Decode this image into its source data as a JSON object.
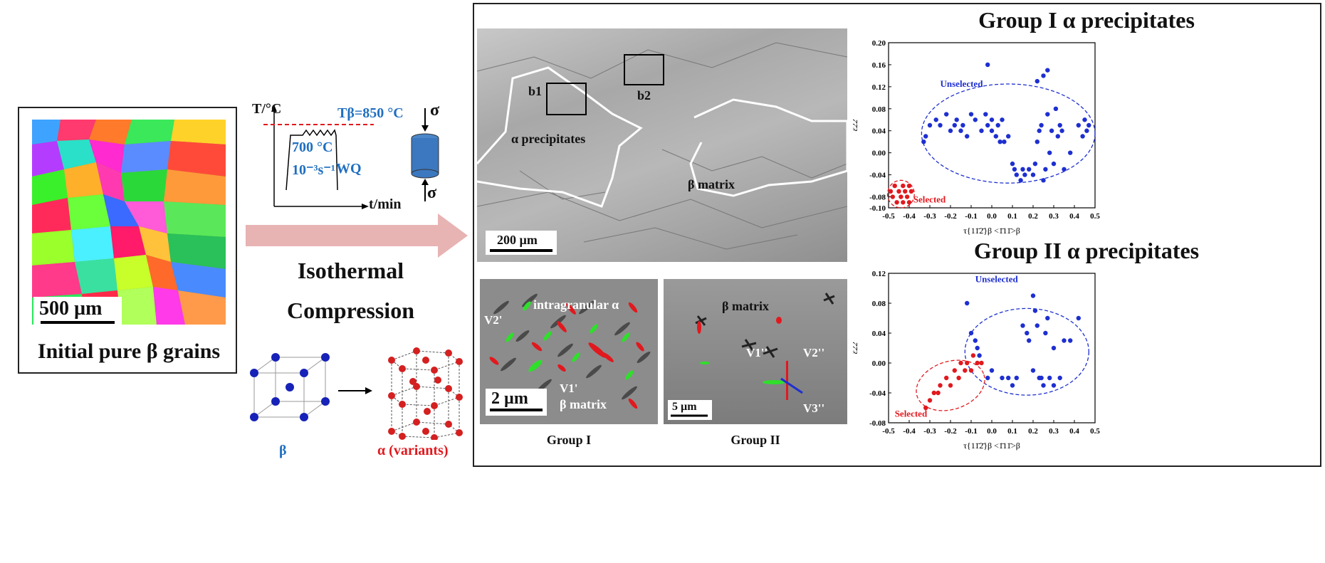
{
  "left_panel": {
    "scale_bar": "500 µm",
    "caption": "Initial pure β grains"
  },
  "process": {
    "temp_axis": "T/°C",
    "time_axis": "t/min",
    "beta_transus": "Tβ=850 °C",
    "hold_temp": "700 °C",
    "strain_rate": "10⁻³s⁻¹",
    "quench": "WQ",
    "stress_top": "σ",
    "stress_bottom": "σ",
    "title_line1": "Isothermal",
    "title_line2": "Compression",
    "beta_label": "β",
    "alpha_label": "α (variants)"
  },
  "micrograph_main": {
    "label_b1": "b1",
    "label_b2": "b2",
    "alpha_label": "α precipitates",
    "beta_label": "β matrix",
    "scale_bar": "200 µm"
  },
  "micrograph_group1": {
    "intragranular": "intragranular α",
    "v2": "V2'",
    "v1": "V1'",
    "beta": "β matrix",
    "scale_bar": "2 µm",
    "caption": "Group I"
  },
  "micrograph_group2": {
    "beta": "β matrix",
    "v1": "V1''",
    "v2": "V2''",
    "v3": "V3''",
    "scale_bar": "5 µm",
    "caption": "Group II"
  },
  "colors": {
    "selected": "#e1191e",
    "unselected": "#1e2fd0",
    "label_blue": "#1f6fc0",
    "arrow": "#e7b3b3"
  },
  "chart_data": [
    {
      "type": "scatter",
      "title": "Group I α precipitates",
      "xlabel": "τ{11̄2̄}β <1̄11̄>β",
      "ylabel": "ε22",
      "xlim": [
        -0.5,
        0.5
      ],
      "ylim": [
        -0.1,
        0.2
      ],
      "xticks": [
        "-0.5",
        "-0.4",
        "-0.3",
        "-0.2",
        "-0.1",
        "0.0",
        "0.1",
        "0.2",
        "0.3",
        "0.4",
        "0.5"
      ],
      "yticks": [
        "-0.10",
        "-0.08",
        "-0.04",
        "0.00",
        "0.04",
        "0.08",
        "0.12",
        "0.16",
        "0.20"
      ],
      "annotations": [
        "Unselected",
        "Selected"
      ],
      "series": [
        {
          "color": "#1e2fd0",
          "points": [
            [
              -0.33,
              0.02
            ],
            [
              -0.32,
              0.03
            ],
            [
              -0.3,
              0.05
            ],
            [
              -0.27,
              0.06
            ],
            [
              -0.25,
              0.05
            ],
            [
              -0.22,
              0.07
            ],
            [
              -0.2,
              0.04
            ],
            [
              -0.18,
              0.05
            ],
            [
              -0.17,
              0.06
            ],
            [
              -0.15,
              0.04
            ],
            [
              -0.14,
              0.05
            ],
            [
              -0.12,
              0.03
            ],
            [
              -0.1,
              0.07
            ],
            [
              -0.08,
              0.06
            ],
            [
              -0.05,
              0.04
            ],
            [
              -0.03,
              0.07
            ],
            [
              -0.02,
              0.05
            ],
            [
              0.0,
              0.06
            ],
            [
              0.0,
              0.04
            ],
            [
              0.02,
              0.03
            ],
            [
              0.03,
              0.05
            ],
            [
              0.04,
              0.02
            ],
            [
              0.05,
              0.06
            ],
            [
              0.06,
              0.02
            ],
            [
              0.08,
              0.03
            ],
            [
              0.1,
              -0.02
            ],
            [
              0.11,
              -0.03
            ],
            [
              0.12,
              -0.04
            ],
            [
              0.14,
              -0.05
            ],
            [
              0.15,
              -0.03
            ],
            [
              0.16,
              -0.04
            ],
            [
              0.18,
              -0.03
            ],
            [
              0.2,
              -0.04
            ],
            [
              0.21,
              -0.02
            ],
            [
              0.22,
              0.02
            ],
            [
              0.23,
              0.04
            ],
            [
              0.24,
              0.05
            ],
            [
              0.25,
              -0.05
            ],
            [
              0.26,
              -0.03
            ],
            [
              0.27,
              0.07
            ],
            [
              0.28,
              0.0
            ],
            [
              0.29,
              0.04
            ],
            [
              0.3,
              -0.02
            ],
            [
              0.31,
              0.08
            ],
            [
              0.32,
              0.03
            ],
            [
              0.33,
              0.05
            ],
            [
              0.34,
              0.04
            ],
            [
              0.35,
              -0.03
            ],
            [
              0.38,
              0.0
            ],
            [
              0.42,
              0.05
            ],
            [
              0.44,
              0.03
            ],
            [
              0.45,
              0.06
            ],
            [
              0.46,
              0.04
            ],
            [
              0.47,
              0.05
            ],
            [
              0.22,
              0.13
            ],
            [
              0.25,
              0.14
            ],
            [
              0.27,
              0.15
            ],
            [
              -0.02,
              0.16
            ]
          ]
        },
        {
          "color": "#e1191e",
          "points": [
            [
              -0.49,
              -0.07
            ],
            [
              -0.48,
              -0.08
            ],
            [
              -0.47,
              -0.06
            ],
            [
              -0.46,
              -0.09
            ],
            [
              -0.45,
              -0.07
            ],
            [
              -0.44,
              -0.08
            ],
            [
              -0.43,
              -0.06
            ],
            [
              -0.43,
              -0.09
            ],
            [
              -0.42,
              -0.07
            ],
            [
              -0.41,
              -0.08
            ],
            [
              -0.4,
              -0.06
            ],
            [
              -0.4,
              -0.09
            ],
            [
              -0.39,
              -0.07
            ]
          ]
        }
      ]
    },
    {
      "type": "scatter",
      "title": "Group II α precipitates",
      "xlabel": "τ{11̄2̄}β <1̄11̄>β",
      "ylabel": "ε22",
      "xlim": [
        -0.5,
        0.5
      ],
      "ylim": [
        -0.08,
        0.12
      ],
      "xticks": [
        "-0.5",
        "-0.4",
        "-0.3",
        "-0.2",
        "-0.1",
        "0.0",
        "0.1",
        "0.2",
        "0.3",
        "0.4",
        "0.5"
      ],
      "yticks": [
        "-0.08",
        "-0.04",
        "0.00",
        "0.04",
        "0.08",
        "0.12"
      ],
      "annotations": [
        "Unselected",
        "Selected"
      ],
      "series": [
        {
          "color": "#1e2fd0",
          "points": [
            [
              -0.12,
              0.08
            ],
            [
              -0.1,
              0.04
            ],
            [
              -0.08,
              0.03
            ],
            [
              -0.07,
              0.02
            ],
            [
              -0.06,
              0.01
            ],
            [
              -0.02,
              -0.02
            ],
            [
              0.0,
              -0.01
            ],
            [
              0.05,
              -0.02
            ],
            [
              0.08,
              -0.02
            ],
            [
              0.1,
              -0.03
            ],
            [
              0.12,
              -0.02
            ],
            [
              0.15,
              0.05
            ],
            [
              0.17,
              0.04
            ],
            [
              0.18,
              0.03
            ],
            [
              0.2,
              0.09
            ],
            [
              0.21,
              0.07
            ],
            [
              0.22,
              0.05
            ],
            [
              0.23,
              -0.02
            ],
            [
              0.25,
              -0.03
            ],
            [
              0.26,
              0.04
            ],
            [
              0.27,
              0.06
            ],
            [
              0.28,
              -0.02
            ],
            [
              0.3,
              0.02
            ],
            [
              0.33,
              -0.02
            ],
            [
              0.35,
              0.03
            ],
            [
              0.38,
              0.03
            ],
            [
              0.42,
              0.06
            ],
            [
              0.2,
              -0.01
            ],
            [
              0.24,
              -0.02
            ],
            [
              0.3,
              -0.03
            ]
          ]
        },
        {
          "color": "#e1191e",
          "points": [
            [
              -0.32,
              -0.06
            ],
            [
              -0.3,
              -0.05
            ],
            [
              -0.28,
              -0.04
            ],
            [
              -0.26,
              -0.04
            ],
            [
              -0.25,
              -0.03
            ],
            [
              -0.22,
              -0.02
            ],
            [
              -0.2,
              -0.03
            ],
            [
              -0.18,
              -0.01
            ],
            [
              -0.16,
              -0.02
            ],
            [
              -0.15,
              0.0
            ],
            [
              -0.13,
              -0.01
            ],
            [
              -0.12,
              0.0
            ],
            [
              -0.1,
              -0.01
            ],
            [
              -0.09,
              0.01
            ],
            [
              -0.07,
              0.0
            ],
            [
              -0.05,
              0.0
            ]
          ]
        }
      ]
    }
  ]
}
